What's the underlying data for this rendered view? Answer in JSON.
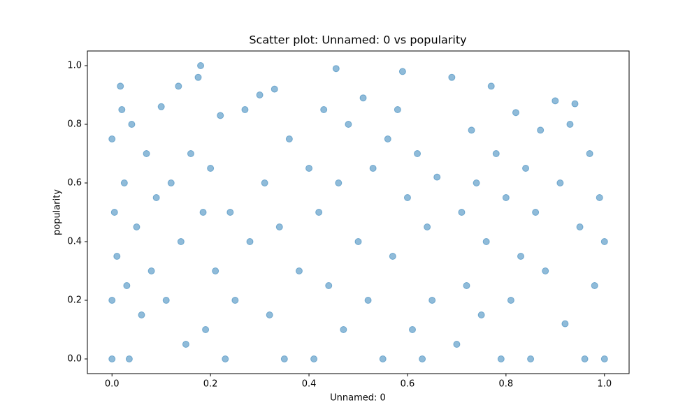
{
  "chart_data": {
    "type": "scatter",
    "title": "Scatter plot: Unnamed: 0 vs popularity",
    "x_label": "Unnamed: 0",
    "y_label": "popularity",
    "color": "#1f77b4",
    "opacity": 0.5,
    "grid": false,
    "xlim": [
      -0.05,
      1.05
    ],
    "ylim": [
      -0.05,
      1.05
    ],
    "xticks": [
      {
        "value": 0,
        "label": "0.0"
      },
      {
        "value": 0.2,
        "label": "0.2"
      },
      {
        "value": 0.4,
        "label": "0.4"
      },
      {
        "value": 0.6,
        "label": "0.6"
      },
      {
        "value": 0.8,
        "label": "0.8"
      },
      {
        "value": 1,
        "label": "1.0"
      }
    ],
    "yticks": [
      {
        "value": 0,
        "label": "0.0"
      },
      {
        "value": 0.2,
        "label": "0.2"
      },
      {
        "value": 0.4,
        "label": "0.4"
      },
      {
        "value": 0.6,
        "label": "0.6"
      },
      {
        "value": 0.8,
        "label": "0.8"
      },
      {
        "value": 1,
        "label": "1.0"
      }
    ],
    "x": [
      0.0,
      0.0,
      0.0,
      0.005,
      0.01,
      0.017,
      0.02,
      0.025,
      0.03,
      0.035,
      0.04,
      0.05,
      0.06,
      0.07,
      0.08,
      0.09,
      0.1,
      0.11,
      0.12,
      0.135,
      0.14,
      0.15,
      0.16,
      0.175,
      0.18,
      0.185,
      0.19,
      0.2,
      0.21,
      0.22,
      0.23,
      0.24,
      0.25,
      0.27,
      0.28,
      0.3,
      0.31,
      0.32,
      0.33,
      0.34,
      0.35,
      0.36,
      0.38,
      0.4,
      0.41,
      0.42,
      0.43,
      0.44,
      0.455,
      0.46,
      0.47,
      0.48,
      0.5,
      0.51,
      0.52,
      0.53,
      0.55,
      0.56,
      0.57,
      0.58,
      0.59,
      0.6,
      0.61,
      0.62,
      0.63,
      0.64,
      0.65,
      0.66,
      0.69,
      0.7,
      0.71,
      0.72,
      0.73,
      0.74,
      0.75,
      0.76,
      0.77,
      0.78,
      0.79,
      0.8,
      0.81,
      0.82,
      0.83,
      0.84,
      0.85,
      0.86,
      0.87,
      0.88,
      0.9,
      0.91,
      0.92,
      0.93,
      0.94,
      0.95,
      0.96,
      0.97,
      0.98,
      0.99,
      1.0,
      1.0
    ],
    "values": [
      0.0,
      0.75,
      0.2,
      0.5,
      0.35,
      0.93,
      0.85,
      0.6,
      0.25,
      0.0,
      0.8,
      0.45,
      0.15,
      0.7,
      0.3,
      0.55,
      0.86,
      0.2,
      0.6,
      0.93,
      0.4,
      0.05,
      0.7,
      0.96,
      1.0,
      0.5,
      0.1,
      0.65,
      0.3,
      0.83,
      0.0,
      0.5,
      0.2,
      0.85,
      0.4,
      0.9,
      0.6,
      0.15,
      0.92,
      0.45,
      0.0,
      0.75,
      0.3,
      0.65,
      0.0,
      0.5,
      0.85,
      0.25,
      0.99,
      0.6,
      0.1,
      0.8,
      0.4,
      0.89,
      0.2,
      0.65,
      0.0,
      0.75,
      0.35,
      0.85,
      0.98,
      0.55,
      0.1,
      0.7,
      0.0,
      0.45,
      0.2,
      0.62,
      0.96,
      0.05,
      0.5,
      0.25,
      0.78,
      0.6,
      0.15,
      0.4,
      0.93,
      0.7,
      0.0,
      0.55,
      0.2,
      0.84,
      0.35,
      0.65,
      0.0,
      0.5,
      0.78,
      0.3,
      0.88,
      0.6,
      0.12,
      0.8,
      0.87,
      0.45,
      0.0,
      0.7,
      0.25,
      0.55,
      0.4,
      0.0
    ]
  }
}
